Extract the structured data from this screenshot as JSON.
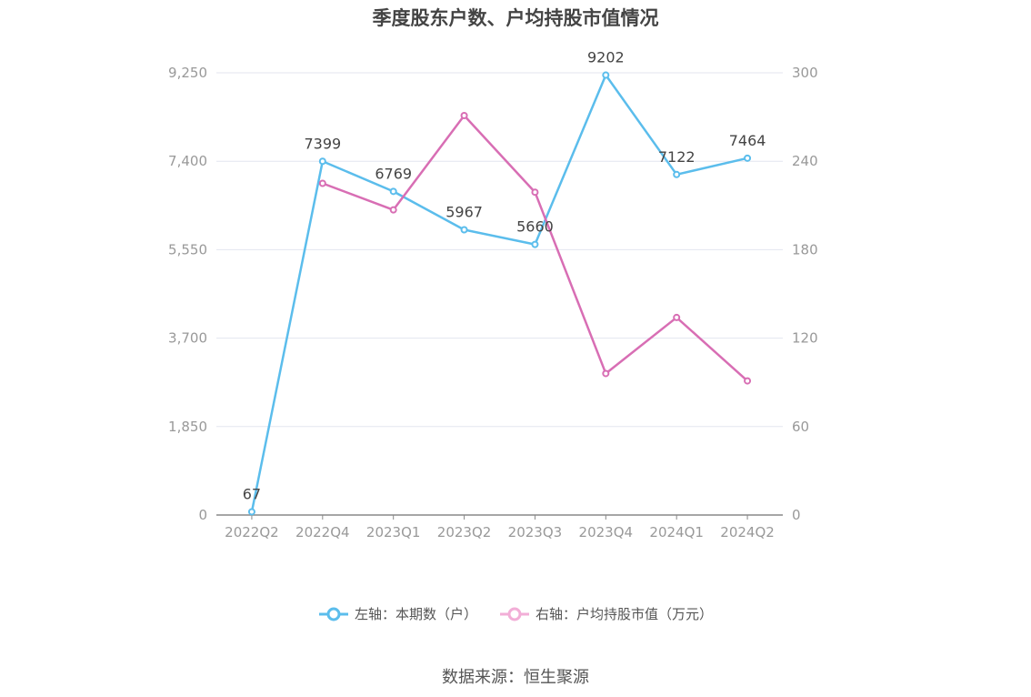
{
  "title": "季度股东户数、户均持股市值情况",
  "source": "数据来源：恒生聚源",
  "colors": {
    "left": "#5bbdec",
    "right": "#d86eb4",
    "legend_right": "#f2aed7",
    "grid": "#e3e6ef",
    "axis": "#999999",
    "tick_text": "#999999"
  },
  "chart_data": {
    "type": "line",
    "categories": [
      "2022Q2",
      "2022Q4",
      "2023Q1",
      "2023Q2",
      "2023Q3",
      "2023Q4",
      "2024Q1",
      "2024Q2"
    ],
    "y_left": {
      "min": 0,
      "max": 9250,
      "ticks": [
        "0",
        "1,850",
        "3,700",
        "5,550",
        "7,400",
        "9,250"
      ],
      "tick_values": [
        0,
        1850,
        3700,
        5550,
        7400,
        9250
      ]
    },
    "y_right": {
      "min": 0,
      "max": 300,
      "ticks": [
        "0",
        "60",
        "120",
        "180",
        "240",
        "300"
      ],
      "tick_values": [
        0,
        60,
        120,
        180,
        240,
        300
      ]
    },
    "series": [
      {
        "name": "左轴：本期数（户）",
        "axis": "left",
        "values": [
          67,
          7399,
          6769,
          5967,
          5660,
          9202,
          7122,
          7464
        ],
        "labels": [
          "67",
          "7399",
          "6769",
          "5967",
          "5660",
          "9202",
          "7122",
          "7464"
        ]
      },
      {
        "name": "右轴：户均持股市值（万元）",
        "axis": "right",
        "values": [
          null,
          225,
          207,
          271,
          219,
          96,
          134,
          91
        ]
      }
    ],
    "grid": true,
    "legend_position": "bottom"
  }
}
